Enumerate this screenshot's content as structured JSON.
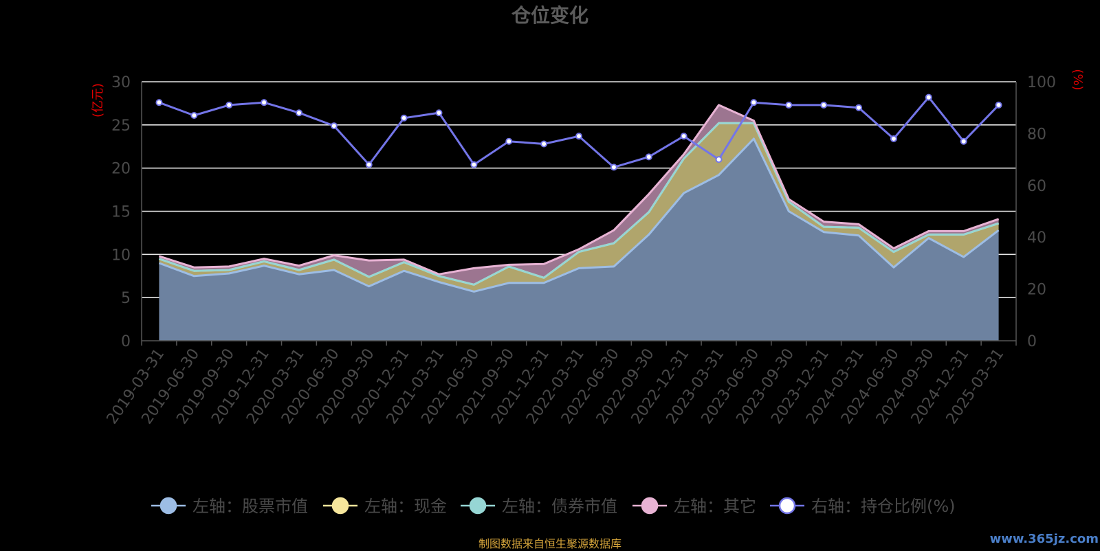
{
  "footer": "制图数据来自恒生聚源数据库",
  "watermark": "www.365jz.com",
  "chart_data": {
    "type": "area",
    "title": "仓位变化",
    "ylabel_left": "(亿元)",
    "ylabel_right": "(%)",
    "y_left_range": [
      0,
      30
    ],
    "y_left_ticks": [
      0,
      5,
      10,
      15,
      20,
      25,
      30
    ],
    "y_right_range": [
      0,
      100
    ],
    "y_right_ticks": [
      0,
      20,
      40,
      60,
      80,
      100
    ],
    "grid": true,
    "legend_position": "bottom",
    "categories": [
      "2019-03-31",
      "2019-06-30",
      "2019-09-30",
      "2019-12-31",
      "2020-03-31",
      "2020-06-30",
      "2020-09-30",
      "2020-12-31",
      "2021-03-31",
      "2021-06-30",
      "2021-09-30",
      "2021-12-31",
      "2022-03-31",
      "2022-06-30",
      "2022-09-30",
      "2022-12-31",
      "2023-03-31",
      "2023-06-30",
      "2023-09-30",
      "2023-12-31",
      "2024-03-31",
      "2024-06-30",
      "2024-09-30",
      "2024-12-31",
      "2025-03-31"
    ],
    "series": [
      {
        "name": "左轴：股票市值",
        "axis": "left",
        "stacked": true,
        "color": "#9dbde5",
        "fill": "#6d82a0",
        "values": [
          9.0,
          7.5,
          7.8,
          8.7,
          7.7,
          8.2,
          6.3,
          8.1,
          6.8,
          5.7,
          6.7,
          6.7,
          8.4,
          8.6,
          12.3,
          17.1,
          19.2,
          23.4,
          15.0,
          12.6,
          12.2,
          8.5,
          11.9,
          9.7,
          12.8
        ]
      },
      {
        "name": "左轴：现金",
        "axis": "left",
        "stacked": true,
        "color": "#f6e69c",
        "fill": "#b0a56c",
        "values": [
          0.5,
          0.6,
          0.4,
          0.5,
          0.5,
          1.2,
          1.1,
          1.0,
          0.7,
          0.8,
          1.9,
          0.6,
          1.9,
          2.7,
          2.6,
          4.0,
          6.0,
          1.8,
          1.1,
          0.6,
          0.9,
          1.8,
          0.4,
          2.6,
          0.8
        ]
      },
      {
        "name": "左轴：债券市值",
        "axis": "left",
        "stacked": true,
        "color": "#96d6d4",
        "fill": "#7fb8b6",
        "values": [
          0,
          0,
          0,
          0,
          0,
          0,
          0,
          0,
          0,
          0,
          0,
          0,
          0,
          0,
          0,
          0,
          0,
          0,
          0,
          0,
          0,
          0,
          0,
          0,
          0
        ]
      },
      {
        "name": "左轴：其它",
        "axis": "left",
        "stacked": true,
        "color": "#e8b3d4",
        "fill": "#9c7590",
        "values": [
          0.3,
          0.4,
          0.4,
          0.3,
          0.5,
          0.5,
          1.9,
          0.3,
          0.2,
          1.9,
          0.2,
          1.6,
          0.3,
          1.5,
          2.1,
          0.5,
          2.1,
          0.3,
          0.3,
          0.6,
          0.4,
          0.4,
          0.4,
          0.4,
          0.5
        ]
      },
      {
        "name": "右轴：持仓比例(%)",
        "axis": "right",
        "stacked": false,
        "color": "#7375e8",
        "values": [
          92,
          87,
          91,
          92,
          88,
          83,
          68,
          86,
          88,
          68,
          77,
          76,
          79,
          67,
          71,
          79,
          70,
          92,
          91,
          91,
          90,
          78,
          94,
          77,
          91
        ]
      }
    ]
  }
}
